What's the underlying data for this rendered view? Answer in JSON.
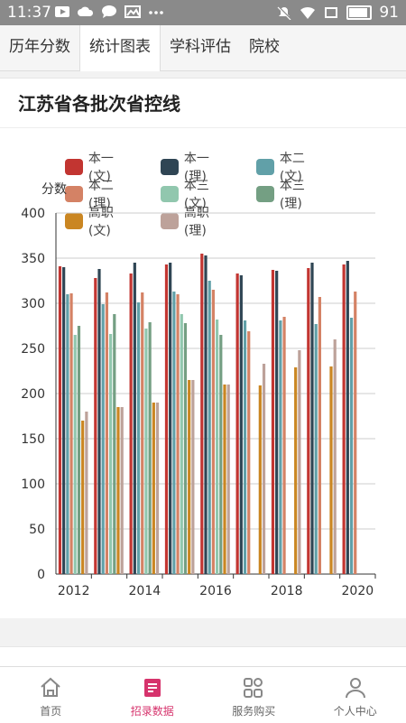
{
  "status_bar": {
    "time": "11:37",
    "battery": "91"
  },
  "tabs": [
    {
      "label": "历年分数"
    },
    {
      "label": "统计图表"
    },
    {
      "label": "学科评估"
    },
    {
      "label": "院校"
    }
  ],
  "card": {
    "title": "江苏省各批次省控线"
  },
  "chart_data": {
    "type": "bar",
    "ylabel": "分数",
    "ylim": [
      0,
      400
    ],
    "yticks": [
      0,
      50,
      100,
      150,
      200,
      250,
      300,
      350,
      400
    ],
    "categories": [
      "2012",
      "2013",
      "2014",
      "2015",
      "2016",
      "2017",
      "2018",
      "2019",
      "2020"
    ],
    "xticklabels": [
      "2012",
      "",
      "2014",
      "",
      "2016",
      "",
      "2018",
      "",
      "2020"
    ],
    "legend_placement": "top",
    "series": [
      {
        "name": "本一(文)",
        "color": "#c23531",
        "values": [
          341,
          328,
          333,
          343,
          355,
          333,
          337,
          339,
          343
        ]
      },
      {
        "name": "本一(理)",
        "color": "#2f4554",
        "values": [
          340,
          338,
          345,
          345,
          353,
          331,
          336,
          345,
          347
        ]
      },
      {
        "name": "本二(文)",
        "color": "#61a0a8",
        "values": [
          310,
          299,
          301,
          313,
          325,
          281,
          281,
          277,
          284
        ]
      },
      {
        "name": "本二(理)",
        "color": "#d48265",
        "values": [
          311,
          312,
          312,
          310,
          315,
          269,
          285,
          307,
          313
        ]
      },
      {
        "name": "本三(文)",
        "color": "#91c7ae",
        "values": [
          265,
          266,
          272,
          288,
          282,
          null,
          null,
          null,
          null
        ]
      },
      {
        "name": "本三(理)",
        "color": "#749f83",
        "values": [
          275,
          288,
          279,
          278,
          265,
          null,
          null,
          null,
          null
        ]
      },
      {
        "name": "高职(文)",
        "color": "#ca8622",
        "values": [
          170,
          185,
          190,
          215,
          210,
          209,
          229,
          230,
          null
        ]
      },
      {
        "name": "高职(理)",
        "color": "#bda29a",
        "values": [
          180,
          185,
          190,
          215,
          210,
          233,
          248,
          260,
          null
        ]
      }
    ]
  },
  "bottom_nav": [
    {
      "label": "首页",
      "icon": "home-icon",
      "active": false
    },
    {
      "label": "招录数据",
      "icon": "report-icon",
      "active": true
    },
    {
      "label": "服务购买",
      "icon": "grid-icon",
      "active": false
    },
    {
      "label": "个人中心",
      "icon": "user-icon",
      "active": false
    }
  ]
}
